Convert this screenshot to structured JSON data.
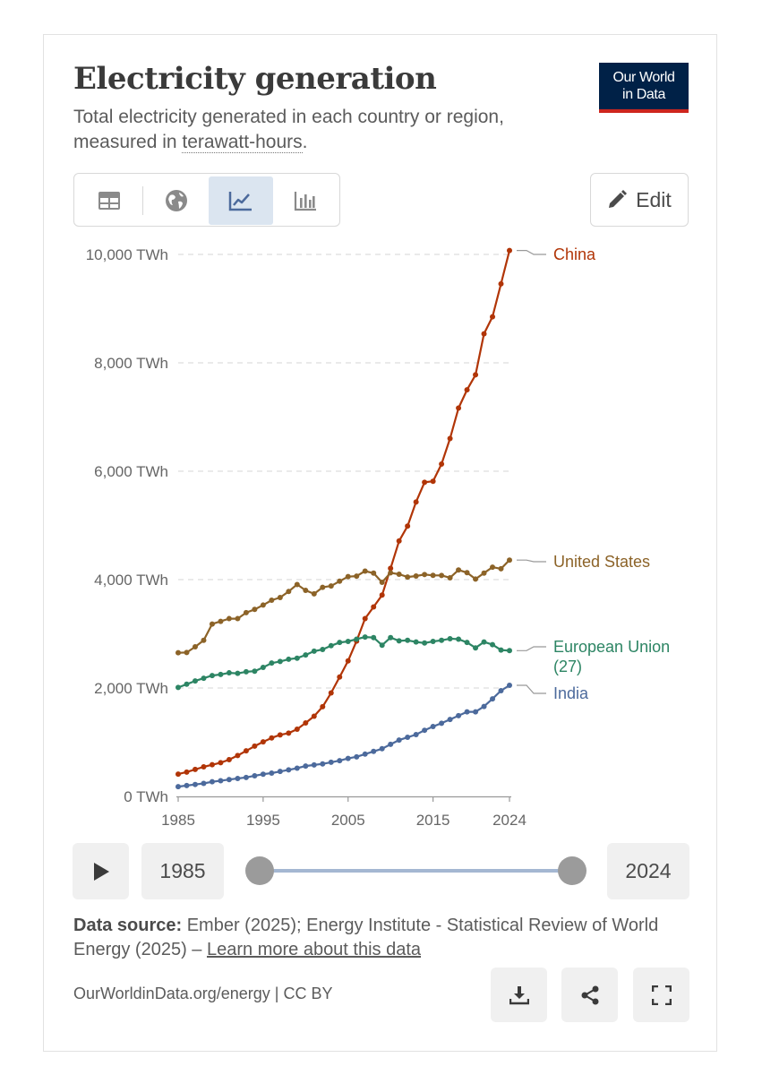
{
  "header": {
    "title": "Electricity generation",
    "subtitle_prefix": "Total electricity generated in each country or region, measured in ",
    "subtitle_link": "terawatt-hours",
    "subtitle_suffix": ".",
    "logo_line1": "Our World",
    "logo_line2": "in Data"
  },
  "toolbar": {
    "tabs": [
      {
        "name": "table",
        "icon": "table-icon"
      },
      {
        "name": "map",
        "icon": "globe-icon"
      },
      {
        "name": "line",
        "icon": "line-chart-icon",
        "active": true
      },
      {
        "name": "bar",
        "icon": "bar-chart-icon"
      }
    ],
    "edit_label": "Edit"
  },
  "chart_data": {
    "type": "line",
    "title": "Electricity generation",
    "ylabel": "TWh",
    "ylim": [
      0,
      10000
    ],
    "y_ticks": [
      "0 TWh",
      "2,000 TWh",
      "4,000 TWh",
      "6,000 TWh",
      "8,000 TWh",
      "10,000 TWh"
    ],
    "y_tick_values": [
      0,
      2000,
      4000,
      6000,
      8000,
      10000
    ],
    "x_ticks": [
      "1985",
      "1995",
      "2005",
      "2015",
      "2024"
    ],
    "x_tick_values": [
      1985,
      1995,
      2005,
      2015,
      2024
    ],
    "x_start": 1985,
    "series": [
      {
        "name": "China",
        "label": "China",
        "color": "#b13507",
        "values": [
          411,
          449,
          497,
          545,
          584,
          621,
          678,
          754,
          840,
          928,
          1007,
          1079,
          1135,
          1167,
          1239,
          1356,
          1480,
          1654,
          1910,
          2203,
          2500,
          2866,
          3281,
          3496,
          3714,
          4208,
          4713,
          4988,
          5432,
          5795,
          5815,
          6133,
          6604,
          7166,
          7503,
          7779,
          8535,
          8849,
          9456,
          10073
        ]
      },
      {
        "name": "United States",
        "label": "United States",
        "color": "#8c6328",
        "values": [
          2650,
          2655,
          2760,
          2880,
          3180,
          3230,
          3280,
          3280,
          3390,
          3450,
          3530,
          3620,
          3670,
          3780,
          3910,
          3802,
          3737,
          3858,
          3883,
          3971,
          4055,
          4065,
          4157,
          4119,
          3950,
          4125,
          4100,
          4048,
          4066,
          4094,
          4078,
          4077,
          4034,
          4178,
          4128,
          4010,
          4120,
          4230,
          4200,
          4360
        ]
      },
      {
        "name": "European Union (27)",
        "label_lines": [
          "European Union",
          "(27)"
        ],
        "color": "#2d8564",
        "values": [
          2010,
          2070,
          2130,
          2180,
          2230,
          2250,
          2280,
          2270,
          2300,
          2310,
          2380,
          2460,
          2490,
          2530,
          2550,
          2610,
          2680,
          2710,
          2780,
          2840,
          2860,
          2900,
          2940,
          2930,
          2790,
          2930,
          2870,
          2880,
          2850,
          2830,
          2860,
          2880,
          2910,
          2900,
          2840,
          2740,
          2850,
          2800,
          2700,
          2690
        ]
      },
      {
        "name": "India",
        "label": "India",
        "color": "#4c6a9c",
        "values": [
          180,
          200,
          220,
          240,
          270,
          290,
          310,
          330,
          350,
          380,
          410,
          430,
          460,
          490,
          520,
          560,
          580,
          600,
          630,
          660,
          700,
          730,
          780,
          830,
          880,
          960,
          1040,
          1090,
          1140,
          1220,
          1290,
          1350,
          1420,
          1490,
          1560,
          1560,
          1660,
          1800,
          1950,
          2050
        ]
      }
    ]
  },
  "timeline": {
    "start_year": "1985",
    "end_year": "2024"
  },
  "footer": {
    "source_bold": "Data source:",
    "source_text": " Ember (2025); Energy Institute - Statistical Review of World Energy (2025) – ",
    "learn_more": "Learn more about this data",
    "url": "OurWorldinData.org/energy | CC BY"
  },
  "icons": [
    "play-icon",
    "download-icon",
    "share-icon",
    "fullscreen-icon",
    "pencil-icon"
  ]
}
